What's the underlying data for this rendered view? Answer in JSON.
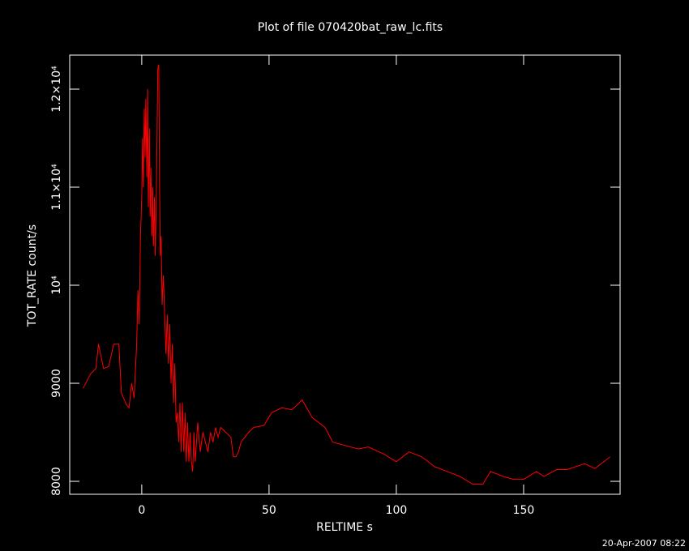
{
  "chart_data": {
    "type": "line",
    "title": "Plot of file 070420bat_raw_lc.fits",
    "xlabel": "RELTIME  s",
    "ylabel": "TOT_RATE  count/s",
    "footer": "20-Apr-2007 08:22",
    "x": [
      -23,
      -20,
      -18,
      -17,
      -15,
      -13,
      -11,
      -9,
      -8,
      -6,
      -5,
      -4,
      -3,
      -2,
      -1.5,
      -1,
      -0.5,
      0,
      0.3,
      0.6,
      1,
      1.3,
      1.6,
      2,
      2.3,
      2.6,
      3,
      3.3,
      3.6,
      4,
      4.3,
      4.6,
      5,
      5.3,
      5.6,
      6,
      6.3,
      6.7,
      7,
      7.3,
      7.6,
      8,
      8.5,
      9,
      9.5,
      10,
      10.5,
      11,
      11.5,
      12,
      12.5,
      13,
      13.5,
      14,
      14.5,
      15,
      15.5,
      16,
      16.5,
      17,
      17.5,
      18,
      18.5,
      19,
      19.5,
      20,
      20.5,
      21,
      22,
      23,
      24,
      25,
      26,
      27,
      28,
      29,
      30,
      31,
      33,
      35,
      36,
      37,
      38,
      39,
      42,
      44,
      48,
      51,
      55,
      59,
      63,
      67,
      72,
      75,
      85,
      89,
      95,
      100,
      105,
      110,
      115,
      120,
      125,
      130,
      134,
      137,
      142,
      146,
      150,
      155,
      158,
      163,
      167,
      174,
      178,
      184
    ],
    "series": [
      {
        "name": "TOT_RATE",
        "color": "#ff0000",
        "values": [
          8950,
          9100,
          9150,
          9400,
          9150,
          9170,
          9400,
          9400,
          8900,
          8780,
          8750,
          9000,
          8850,
          9400,
          9950,
          9600,
          10500,
          10900,
          11500,
          11000,
          11800,
          11300,
          11900,
          11100,
          12000,
          10800,
          11600,
          10700,
          11200,
          10500,
          11000,
          10400,
          10900,
          10300,
          10700,
          11500,
          12200,
          12250,
          11000,
          10300,
          10500,
          9800,
          10100,
          9700,
          9300,
          9700,
          9200,
          9600,
          9000,
          9400,
          8800,
          9200,
          8600,
          8700,
          8400,
          8800,
          8300,
          8800,
          8300,
          8700,
          8200,
          8600,
          8200,
          8500,
          8200,
          8100,
          8500,
          8200,
          8600,
          8300,
          8500,
          8400,
          8300,
          8500,
          8400,
          8550,
          8450,
          8550,
          8500,
          8450,
          8250,
          8250,
          8300,
          8400,
          8500,
          8550,
          8570,
          8700,
          8750,
          8730,
          8830,
          8650,
          8550,
          8400,
          8330,
          8350,
          8280,
          8200,
          8300,
          8250,
          8150,
          8100,
          8050,
          7970,
          7970,
          8100,
          8050,
          8020,
          8020,
          8100,
          8050,
          8120,
          8120,
          8180,
          8130,
          8250
        ]
      }
    ],
    "xlim": [
      -28.3,
      187.9
    ],
    "ylim": [
      7868,
      12347
    ],
    "xticks": [
      0,
      50,
      100,
      150
    ],
    "yticks": [
      8000,
      9000,
      {
        "value": 10000,
        "label": "10⁴"
      },
      {
        "value": 11000,
        "label": "1.1×10⁴"
      },
      {
        "value": 12000,
        "label": "1.2×10⁴"
      }
    ]
  }
}
